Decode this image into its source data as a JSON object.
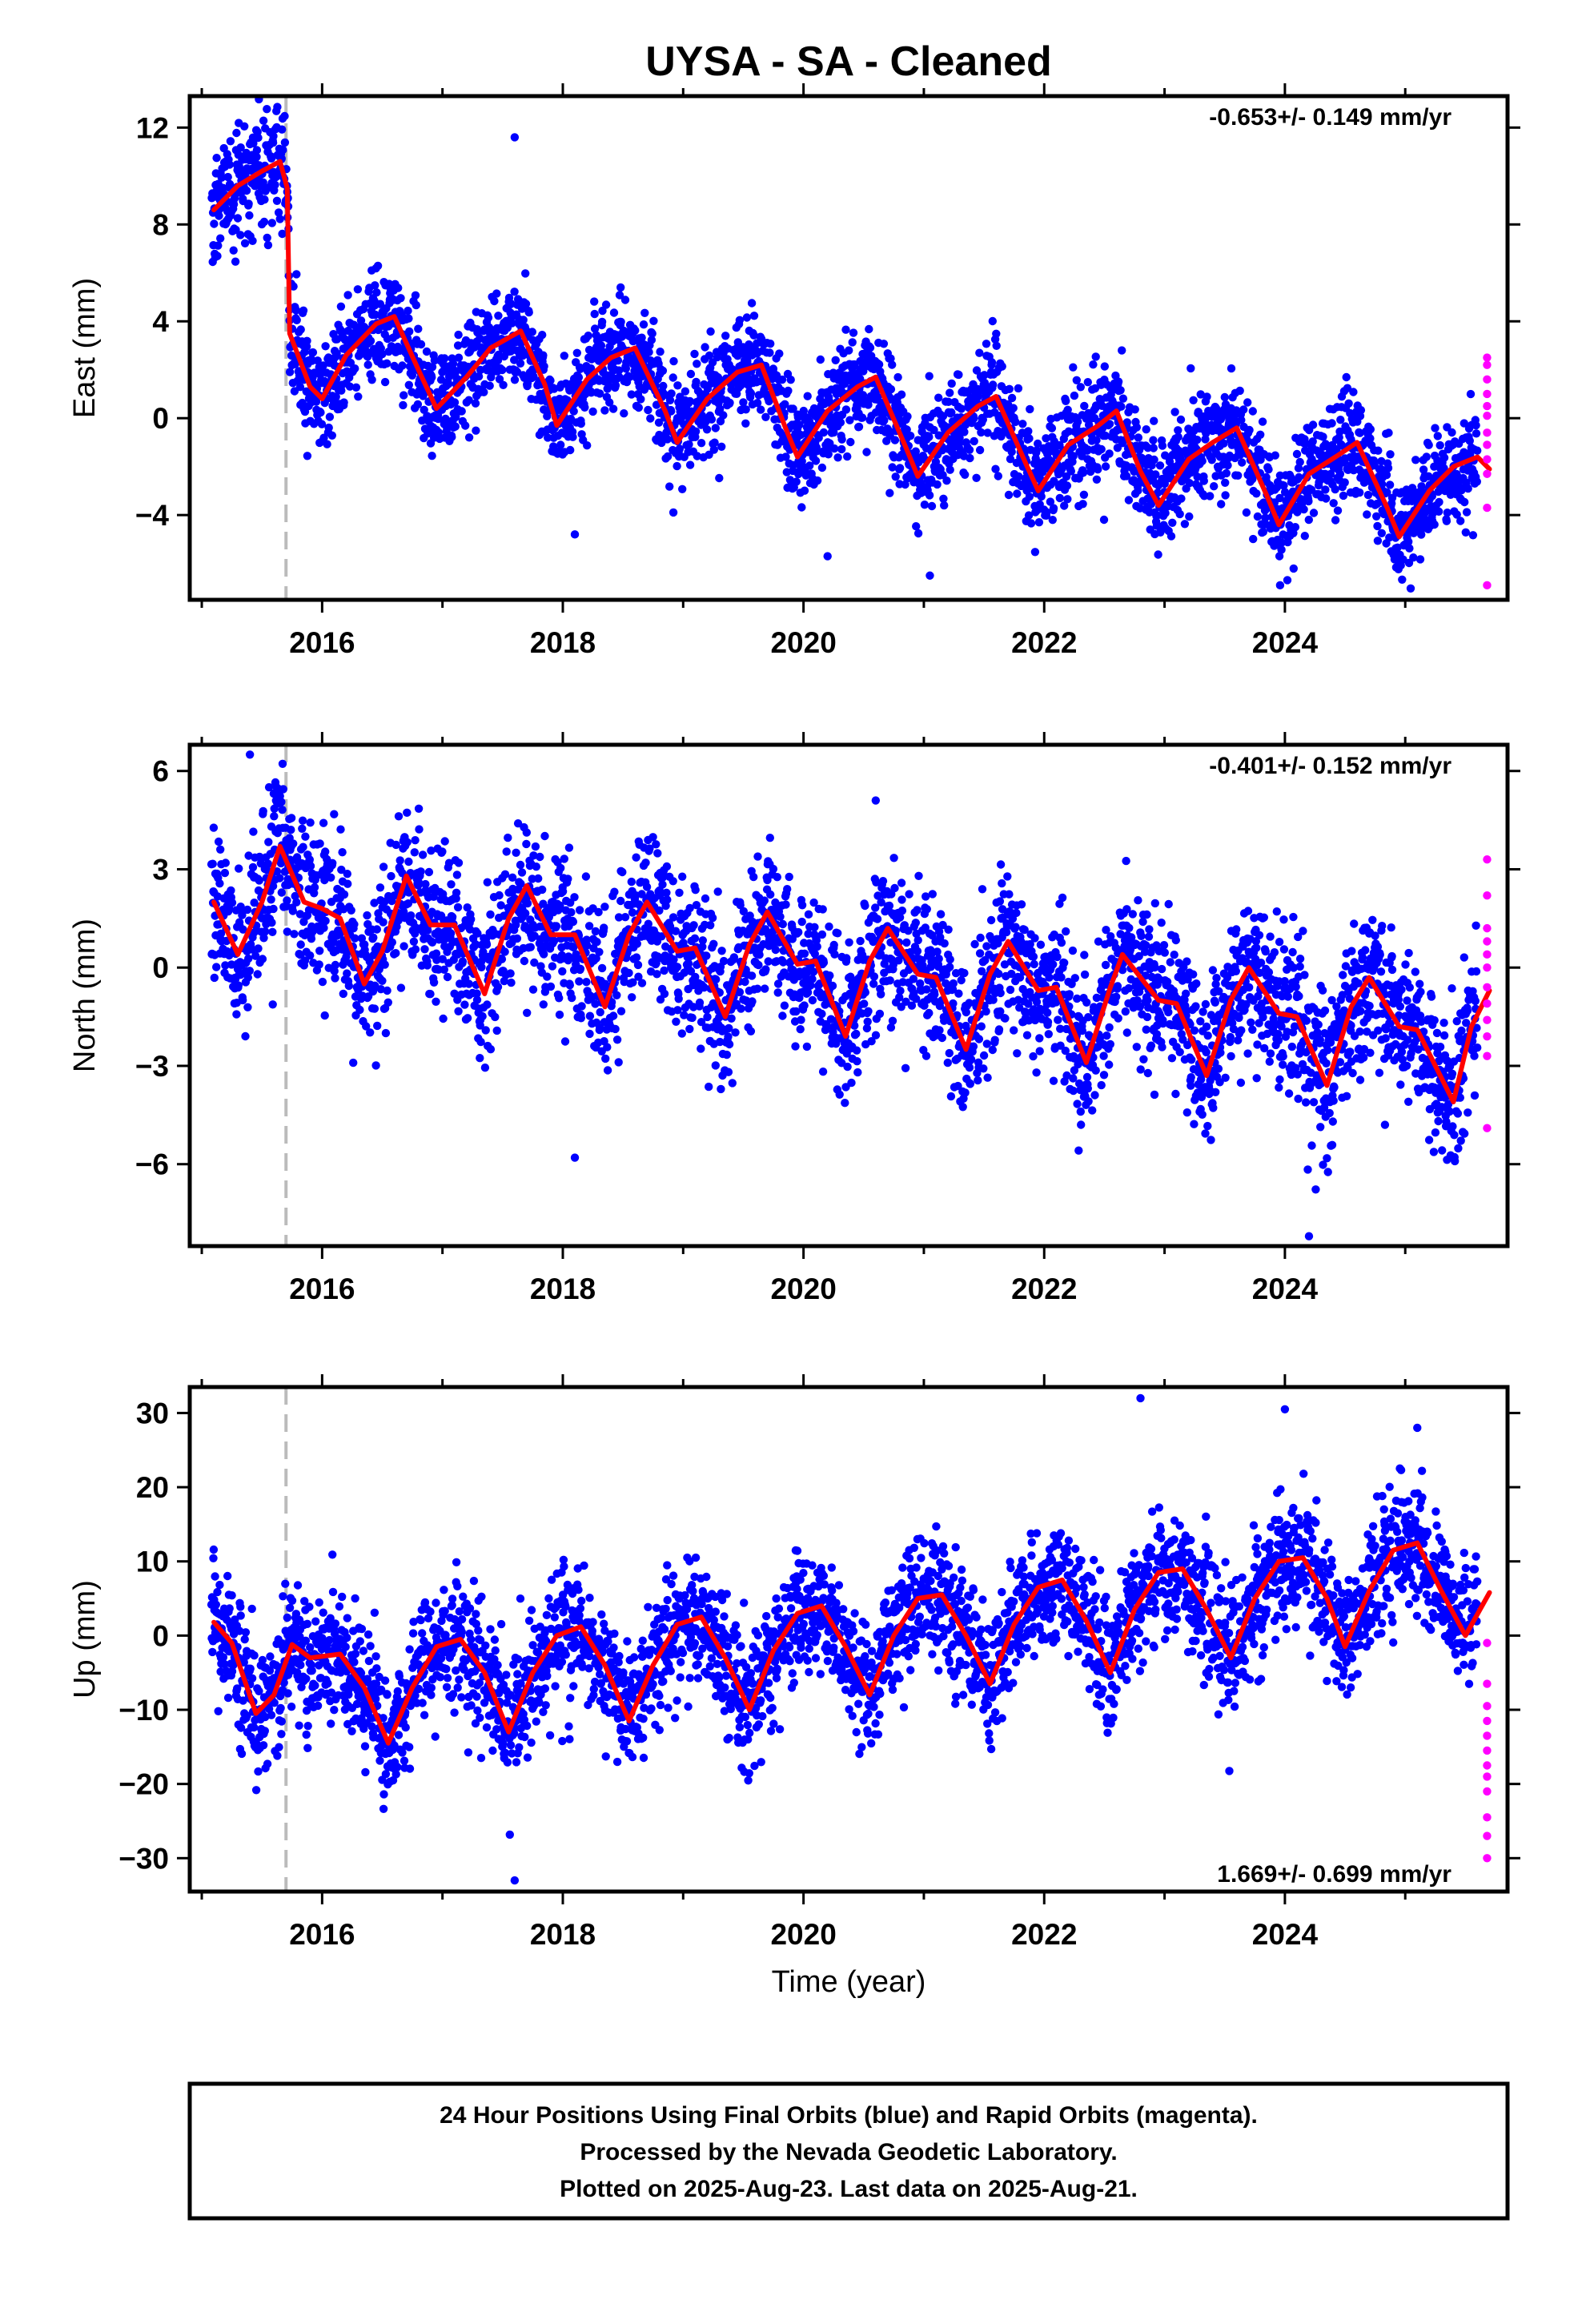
{
  "title": "UYSA  - SA - Cleaned",
  "xlabel": "Time (year)",
  "footer": [
    "24 Hour Positions Using Final Orbits (blue) and Rapid Orbits (magenta).",
    "Processed by the Nevada Geodetic Laboratory.",
    "Plotted on 2025-Aug-23. Last data on 2025-Aug-21."
  ],
  "colors": {
    "final": "#0000ff",
    "rapid": "#ff00ff",
    "model": "#ff0000",
    "event": "#bbbbbb"
  },
  "chart_data": [
    {
      "type": "scatter",
      "component": "east",
      "ylabel": "East (mm)",
      "rate_label": "-0.653+/- 0.149 mm/yr",
      "xlim": [
        2014.9,
        2025.85
      ],
      "ylim": [
        -7.5,
        13.3
      ],
      "xticks": [
        2016,
        2018,
        2020,
        2022,
        2024
      ],
      "yticks": [
        -4,
        0,
        4,
        8,
        12
      ],
      "event_line_x": 2015.7,
      "model_curve": [
        [
          2015.1,
          8.6
        ],
        [
          2015.3,
          9.6
        ],
        [
          2015.5,
          10.2
        ],
        [
          2015.65,
          10.6
        ],
        [
          2015.71,
          9.5
        ],
        [
          2015.73,
          3.5
        ],
        [
          2015.9,
          1.3
        ],
        [
          2016.0,
          0.8
        ],
        [
          2016.2,
          2.6
        ],
        [
          2016.45,
          3.9
        ],
        [
          2016.6,
          4.2
        ],
        [
          2016.8,
          2.0
        ],
        [
          2016.95,
          0.4
        ],
        [
          2017.2,
          1.7
        ],
        [
          2017.4,
          2.9
        ],
        [
          2017.65,
          3.6
        ],
        [
          2017.85,
          1.4
        ],
        [
          2017.95,
          -0.3
        ],
        [
          2018.2,
          1.6
        ],
        [
          2018.4,
          2.5
        ],
        [
          2018.6,
          2.9
        ],
        [
          2018.85,
          0.3
        ],
        [
          2018.95,
          -1.0
        ],
        [
          2019.2,
          0.8
        ],
        [
          2019.45,
          1.9
        ],
        [
          2019.65,
          2.2
        ],
        [
          2019.85,
          -0.4
        ],
        [
          2019.95,
          -1.6
        ],
        [
          2020.2,
          0.3
        ],
        [
          2020.45,
          1.3
        ],
        [
          2020.6,
          1.7
        ],
        [
          2020.85,
          -1.2
        ],
        [
          2020.95,
          -2.4
        ],
        [
          2021.2,
          -0.6
        ],
        [
          2021.45,
          0.5
        ],
        [
          2021.6,
          0.9
        ],
        [
          2021.85,
          -1.9
        ],
        [
          2021.95,
          -3.0
        ],
        [
          2022.2,
          -1.1
        ],
        [
          2022.45,
          -0.3
        ],
        [
          2022.6,
          0.3
        ],
        [
          2022.8,
          -2.2
        ],
        [
          2022.95,
          -3.6
        ],
        [
          2023.2,
          -1.7
        ],
        [
          2023.4,
          -1.0
        ],
        [
          2023.6,
          -0.4
        ],
        [
          2023.85,
          -3.2
        ],
        [
          2023.95,
          -4.4
        ],
        [
          2024.2,
          -2.3
        ],
        [
          2024.45,
          -1.5
        ],
        [
          2024.6,
          -1.0
        ],
        [
          2024.85,
          -3.7
        ],
        [
          2024.95,
          -4.9
        ],
        [
          2025.2,
          -3.0
        ],
        [
          2025.4,
          -2.0
        ],
        [
          2025.6,
          -1.6
        ],
        [
          2025.7,
          -2.1
        ]
      ],
      "rapid_x": 2025.68,
      "rapid_values": [
        2.5,
        2.2,
        1.6,
        1.0,
        0.5,
        0.1,
        -0.6,
        -1.1,
        -1.7,
        -2.3,
        -3.7,
        -6.9
      ],
      "seasonal_amplitude": 1.4,
      "scatter_sd": 1.1,
      "outliers": [
        [
          2017.6,
          11.6
        ],
        [
          2018.1,
          -4.8
        ],
        [
          2020.2,
          -5.7
        ],
        [
          2021.05,
          -6.5
        ],
        [
          2023.96,
          -6.9
        ]
      ]
    },
    {
      "type": "scatter",
      "component": "north",
      "ylabel": "North (mm)",
      "rate_label": "-0.401+/- 0.152 mm/yr",
      "xlim": [
        2014.9,
        2025.85
      ],
      "ylim": [
        -8.5,
        6.8
      ],
      "xticks": [
        2016,
        2018,
        2020,
        2022,
        2024
      ],
      "yticks": [
        -6,
        -3,
        0,
        3,
        6
      ],
      "event_line_x": 2015.7,
      "model_curve": [
        [
          2015.1,
          2.0
        ],
        [
          2015.3,
          0.4
        ],
        [
          2015.5,
          2.0
        ],
        [
          2015.65,
          3.7
        ],
        [
          2015.85,
          2.0
        ],
        [
          2016.0,
          1.8
        ],
        [
          2016.15,
          1.5
        ],
        [
          2016.35,
          -0.5
        ],
        [
          2016.5,
          0.5
        ],
        [
          2016.7,
          2.8
        ],
        [
          2016.9,
          1.3
        ],
        [
          2017.1,
          1.3
        ],
        [
          2017.35,
          -0.8
        ],
        [
          2017.55,
          1.5
        ],
        [
          2017.7,
          2.5
        ],
        [
          2017.9,
          1.0
        ],
        [
          2018.1,
          1.0
        ],
        [
          2018.35,
          -1.2
        ],
        [
          2018.55,
          1.0
        ],
        [
          2018.7,
          2.0
        ],
        [
          2018.95,
          0.5
        ],
        [
          2019.1,
          0.6
        ],
        [
          2019.35,
          -1.5
        ],
        [
          2019.55,
          0.7
        ],
        [
          2019.7,
          1.7
        ],
        [
          2019.95,
          0.1
        ],
        [
          2020.1,
          0.2
        ],
        [
          2020.35,
          -2.1
        ],
        [
          2020.55,
          0.2
        ],
        [
          2020.7,
          1.2
        ],
        [
          2020.95,
          -0.2
        ],
        [
          2021.1,
          -0.3
        ],
        [
          2021.35,
          -2.5
        ],
        [
          2021.55,
          -0.2
        ],
        [
          2021.7,
          0.8
        ],
        [
          2021.95,
          -0.7
        ],
        [
          2022.1,
          -0.6
        ],
        [
          2022.35,
          -2.9
        ],
        [
          2022.55,
          -0.6
        ],
        [
          2022.65,
          0.4
        ],
        [
          2022.95,
          -1.0
        ],
        [
          2023.1,
          -1.1
        ],
        [
          2023.35,
          -3.3
        ],
        [
          2023.55,
          -1.0
        ],
        [
          2023.7,
          0.0
        ],
        [
          2023.95,
          -1.4
        ],
        [
          2024.1,
          -1.5
        ],
        [
          2024.35,
          -3.6
        ],
        [
          2024.55,
          -1.2
        ],
        [
          2024.7,
          -0.3
        ],
        [
          2024.95,
          -1.8
        ],
        [
          2025.1,
          -1.9
        ],
        [
          2025.4,
          -4.1
        ],
        [
          2025.55,
          -1.8
        ],
        [
          2025.7,
          -0.7
        ]
      ],
      "rapid_x": 2025.68,
      "rapid_values": [
        3.3,
        2.2,
        1.2,
        0.8,
        0.4,
        0.0,
        -0.6,
        -1.1,
        -1.6,
        -2.1,
        -2.7,
        -4.9
      ],
      "seasonal_amplitude": 1.2,
      "scatter_sd": 1.15,
      "outliers": [
        [
          2015.4,
          6.5
        ],
        [
          2018.1,
          -5.8
        ],
        [
          2020.6,
          5.1
        ],
        [
          2024.2,
          -8.2
        ]
      ]
    },
    {
      "type": "scatter",
      "component": "up",
      "ylabel": "Up (mm)",
      "rate_label": "1.669+/- 0.699 mm/yr",
      "xlim": [
        2014.9,
        2025.85
      ],
      "ylim": [
        -34.5,
        33.5
      ],
      "xticks": [
        2016,
        2018,
        2020,
        2022,
        2024
      ],
      "yticks": [
        -30,
        -20,
        -10,
        0,
        10,
        20,
        30
      ],
      "event_line_x": 2015.7,
      "model_curve": [
        [
          2015.1,
          1.8
        ],
        [
          2015.25,
          -1.0
        ],
        [
          2015.45,
          -10.5
        ],
        [
          2015.6,
          -8.0
        ],
        [
          2015.75,
          -1.2
        ],
        [
          2015.9,
          -3.0
        ],
        [
          2016.15,
          -2.5
        ],
        [
          2016.35,
          -7.0
        ],
        [
          2016.55,
          -14.5
        ],
        [
          2016.75,
          -7.0
        ],
        [
          2016.95,
          -1.5
        ],
        [
          2017.15,
          -0.5
        ],
        [
          2017.35,
          -5.0
        ],
        [
          2017.55,
          -13.0
        ],
        [
          2017.75,
          -5.0
        ],
        [
          2017.95,
          0.0
        ],
        [
          2018.15,
          1.2
        ],
        [
          2018.35,
          -4.0
        ],
        [
          2018.55,
          -11.5
        ],
        [
          2018.75,
          -4.0
        ],
        [
          2018.95,
          1.5
        ],
        [
          2019.15,
          2.5
        ],
        [
          2019.35,
          -3.0
        ],
        [
          2019.55,
          -10.0
        ],
        [
          2019.75,
          -2.0
        ],
        [
          2019.95,
          3.0
        ],
        [
          2020.15,
          4.0
        ],
        [
          2020.35,
          -1.5
        ],
        [
          2020.55,
          -8.0
        ],
        [
          2020.75,
          0.0
        ],
        [
          2020.95,
          5.0
        ],
        [
          2021.15,
          5.5
        ],
        [
          2021.35,
          0.0
        ],
        [
          2021.55,
          -6.5
        ],
        [
          2021.75,
          1.5
        ],
        [
          2021.95,
          6.5
        ],
        [
          2022.15,
          7.5
        ],
        [
          2022.35,
          2.0
        ],
        [
          2022.55,
          -5.0
        ],
        [
          2022.75,
          3.5
        ],
        [
          2022.95,
          8.5
        ],
        [
          2023.15,
          9.0
        ],
        [
          2023.35,
          3.5
        ],
        [
          2023.55,
          -3.0
        ],
        [
          2023.75,
          5.0
        ],
        [
          2023.95,
          10.0
        ],
        [
          2024.15,
          10.5
        ],
        [
          2024.35,
          5.0
        ],
        [
          2024.5,
          -1.5
        ],
        [
          2024.7,
          6.0
        ],
        [
          2024.9,
          11.5
        ],
        [
          2025.1,
          12.5
        ],
        [
          2025.3,
          6.0
        ],
        [
          2025.5,
          0.0
        ],
        [
          2025.7,
          5.8
        ]
      ],
      "rapid_x": 2025.68,
      "rapid_values": [
        -1.0,
        -6.5,
        -9.5,
        -11.5,
        -13.5,
        -15.5,
        -17.5,
        -19.0,
        -21.0,
        -24.5,
        -27.0,
        -30.0
      ],
      "seasonal_amplitude": 5.5,
      "scatter_sd": 4.2,
      "outliers": [
        [
          2017.6,
          -33.0
        ],
        [
          2022.8,
          32.0
        ],
        [
          2024.0,
          30.5
        ],
        [
          2025.1,
          28.0
        ]
      ]
    }
  ]
}
